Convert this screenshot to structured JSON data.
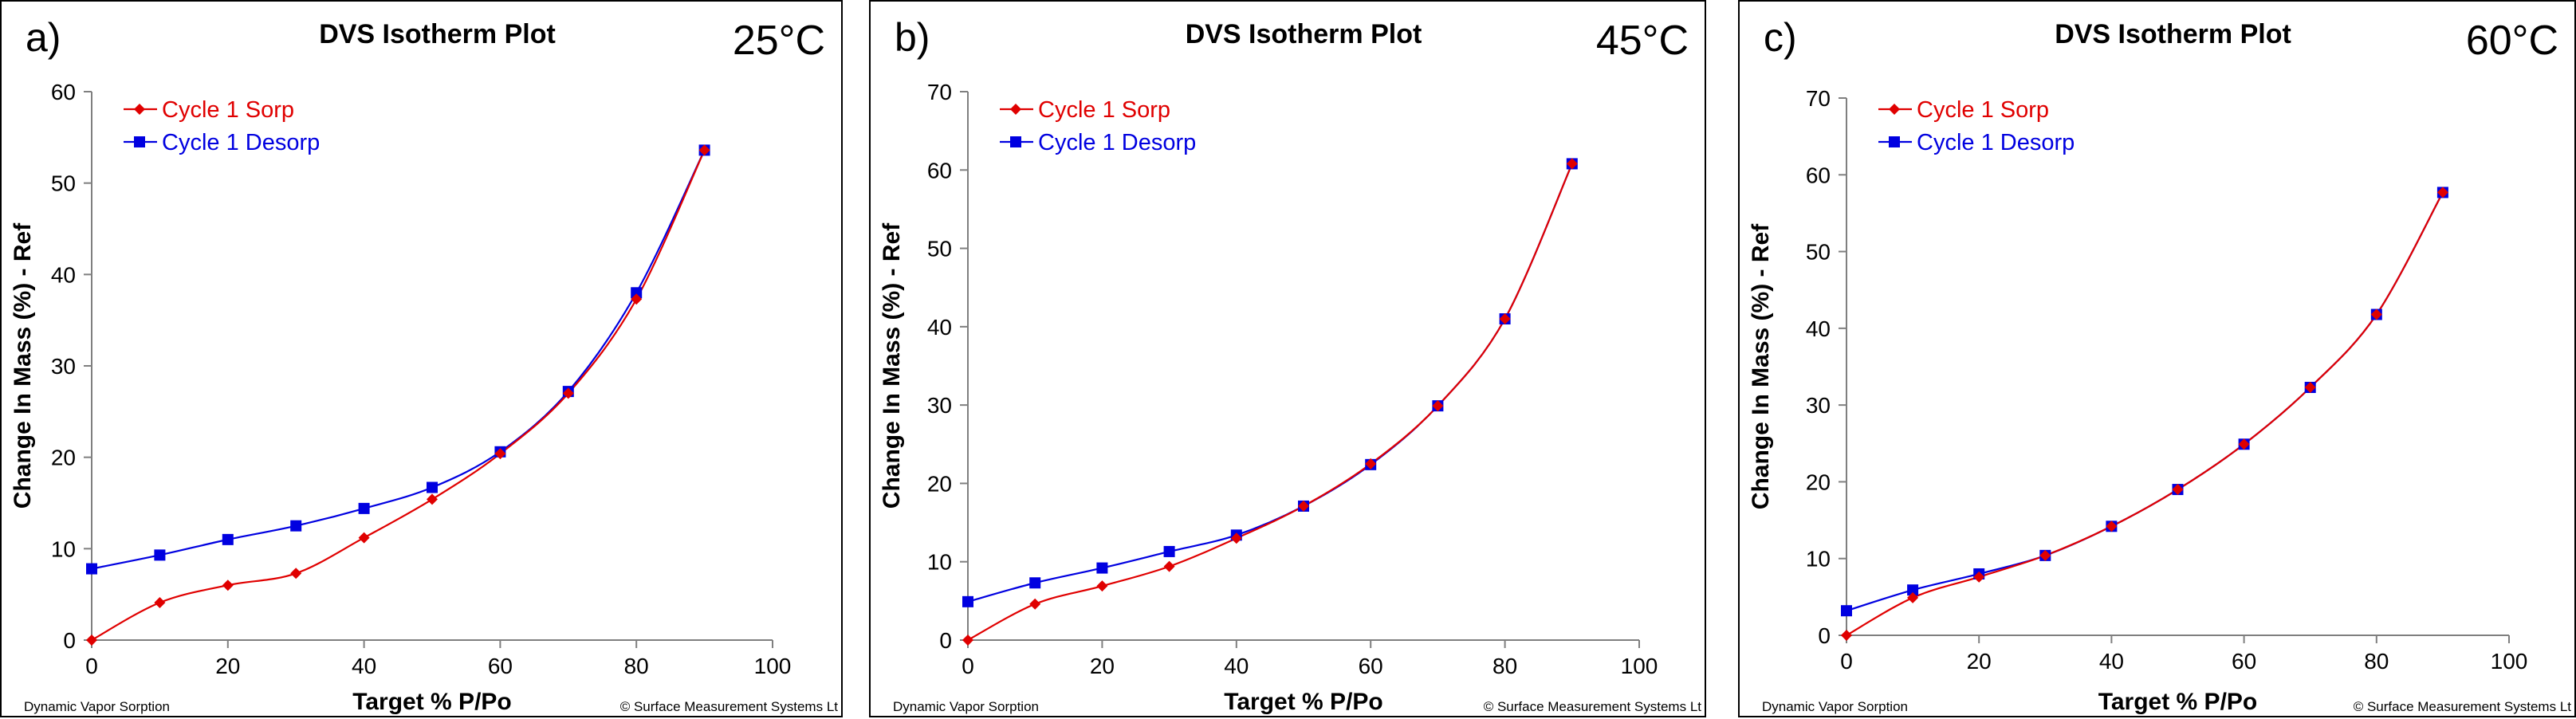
{
  "footer": {
    "left": "Dynamic Vapor Sorption",
    "right": "© Surface Measurement Systems Lt"
  },
  "colors": {
    "sorp": "#e00000",
    "desorp": "#0000e0"
  },
  "chart_data": [
    {
      "type": "line",
      "panel_label": "a)",
      "title": "DVS Isotherm Plot",
      "temperature": "25°C",
      "xlabel": "Target % P/Po",
      "ylabel": "Change In Mass (%) - Ref",
      "xlim": [
        0,
        100
      ],
      "ylim": [
        0,
        60
      ],
      "xticks": [
        0,
        20,
        40,
        60,
        80,
        100
      ],
      "yticks": [
        0,
        10,
        20,
        30,
        40,
        50,
        60
      ],
      "legend": "top-left",
      "grid": false,
      "series": [
        {
          "name": "Cycle 1 Sorp",
          "marker": "diamond",
          "x": [
            0,
            10,
            20,
            30,
            40,
            50,
            60,
            70,
            80,
            90
          ],
          "y": [
            0,
            4.1,
            6.0,
            7.3,
            11.2,
            15.4,
            20.4,
            27.0,
            37.3,
            53.6
          ]
        },
        {
          "name": "Cycle 1 Desorp",
          "marker": "square",
          "x": [
            0,
            10,
            20,
            30,
            40,
            50,
            60,
            70,
            80,
            90
          ],
          "y": [
            7.8,
            9.3,
            11.0,
            12.5,
            14.4,
            16.7,
            20.6,
            27.2,
            38.0,
            53.6
          ]
        }
      ]
    },
    {
      "type": "line",
      "panel_label": "b)",
      "title": "DVS Isotherm Plot",
      "temperature": "45°C",
      "xlabel": "Target % P/Po",
      "ylabel": "Change In Mass (%) - Ref",
      "xlim": [
        0,
        100
      ],
      "ylim": [
        0,
        70
      ],
      "xticks": [
        0,
        20,
        40,
        60,
        80,
        100
      ],
      "yticks": [
        0,
        10,
        20,
        30,
        40,
        50,
        60,
        70
      ],
      "legend": "top-left",
      "grid": false,
      "series": [
        {
          "name": "Cycle 1 Sorp",
          "marker": "diamond",
          "x": [
            0,
            10,
            20,
            30,
            40,
            50,
            60,
            70,
            80,
            90
          ],
          "y": [
            0,
            4.6,
            6.9,
            9.4,
            13.0,
            17.1,
            22.5,
            29.9,
            41.0,
            60.8
          ]
        },
        {
          "name": "Cycle 1 Desorp",
          "marker": "square",
          "x": [
            0,
            10,
            20,
            30,
            40,
            50,
            60,
            70,
            80,
            90
          ],
          "y": [
            4.9,
            7.3,
            9.2,
            11.3,
            13.4,
            17.1,
            22.4,
            29.9,
            41.0,
            60.8
          ]
        }
      ]
    },
    {
      "type": "line",
      "panel_label": "c)",
      "title": "DVS Isotherm Plot",
      "temperature": "60°C",
      "xlabel": "Target % P/Po",
      "ylabel": "Change In Mass (%) - Ref",
      "xlim": [
        0,
        100
      ],
      "ylim": [
        0,
        70
      ],
      "xticks": [
        0,
        20,
        40,
        60,
        80,
        100
      ],
      "yticks": [
        0,
        10,
        20,
        30,
        40,
        50,
        60,
        70
      ],
      "legend": "top-left",
      "grid": false,
      "series": [
        {
          "name": "Cycle 1 Sorp",
          "marker": "diamond",
          "x": [
            0,
            10,
            20,
            30,
            40,
            50,
            60,
            70,
            80,
            90
          ],
          "y": [
            0,
            4.9,
            7.6,
            10.4,
            14.2,
            19.0,
            24.9,
            32.3,
            41.8,
            57.7
          ]
        },
        {
          "name": "Cycle 1 Desorp",
          "marker": "square",
          "x": [
            0,
            10,
            20,
            30,
            40,
            50,
            60,
            70,
            80,
            90
          ],
          "y": [
            3.2,
            5.9,
            8.0,
            10.4,
            14.2,
            19.0,
            24.9,
            32.3,
            41.8,
            57.7
          ]
        }
      ]
    }
  ]
}
